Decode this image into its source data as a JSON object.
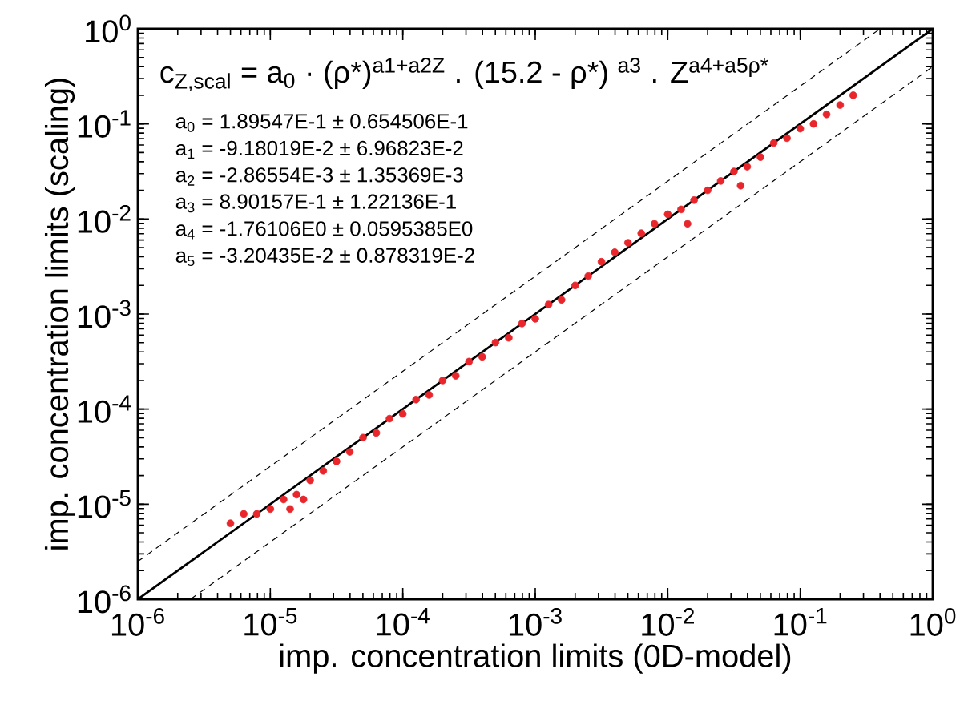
{
  "chart_data": {
    "type": "scatter",
    "xlabel": "imp. concentration limits (0D-model)",
    "ylabel": "imp. concentration limits (scaling)",
    "annotations": [
      "c$_{Z,scal}$ = a$_{0}$ · (ρ*)$^{a1+a2Z}$ . (15.2 - ρ*) $^{a3}$ . Z$^{a4+a5ρ*}$",
      "a$_{0}$ =  1.89547E-1 ± 0.654506E-1",
      "a$_{1}$ = -9.18019E-2 ± 6.96823E-2",
      "a$_{2}$ = -2.86554E-3 ± 1.35369E-3",
      "a$_{3}$ = 8.90157E-1 ± 1.22136E-1",
      "a$_{4}$ = -1.76106E0 ± 0.0595385E0",
      "a$_{5}$ = -3.20435E-2 ± 0.878319E-2"
    ],
    "log": "xy",
    "grid": false,
    "xlim": [
      1e-06,
      1
    ],
    "ylim": [
      1e-06,
      1
    ],
    "xticks": [
      {
        "value": 1e-06,
        "label": "10$^{-6}$"
      },
      {
        "value": 1e-05,
        "label": "10$^{-5}$"
      },
      {
        "value": 0.0001,
        "label": "10$^{-4}$"
      },
      {
        "value": 0.001,
        "label": "10$^{-3}$"
      },
      {
        "value": 0.01,
        "label": "10$^{-2}$"
      },
      {
        "value": 0.1,
        "label": "10$^{-1}$"
      },
      {
        "value": 1,
        "label": "10$^{0}$"
      }
    ],
    "yticks": [
      {
        "value": 1e-06,
        "label": "10$^{-6}$"
      },
      {
        "value": 1e-05,
        "label": "10$^{-5}$"
      },
      {
        "value": 0.0001,
        "label": "10$^{-4}$"
      },
      {
        "value": 0.001,
        "label": "10$^{-3}$"
      },
      {
        "value": 0.01,
        "label": "10$^{-2}$"
      },
      {
        "value": 0.1,
        "label": "10$^{-1}$"
      },
      {
        "value": 1,
        "label": "10$^{0}$"
      }
    ],
    "series": [
      {
        "color": "#e8262b",
        "marker": "circle",
        "x": [
          5e-06,
          6.3e-06,
          7.9e-06,
          1e-05,
          1.26e-05,
          1.41e-05,
          1.58e-05,
          1.78e-05,
          2e-05,
          2.51e-05,
          3.16e-05,
          3.98e-05,
          5.01e-05,
          6.31e-05,
          7.94e-05,
          0.0001,
          0.000126,
          0.000158,
          0.0002,
          0.000251,
          0.000316,
          0.000398,
          0.000501,
          0.000631,
          0.000794,
          0.001,
          0.00126,
          0.00158,
          0.002,
          0.00251,
          0.00316,
          0.00398,
          0.00501,
          0.00631,
          0.00794,
          0.01,
          0.0126,
          0.0141,
          0.0158,
          0.02,
          0.0251,
          0.0316,
          0.0355,
          0.0398,
          0.0501,
          0.0631,
          0.0794,
          0.1,
          0.126,
          0.158,
          0.2,
          0.251
        ],
        "values": [
          6.3e-06,
          7.9e-06,
          7.9e-06,
          8.9e-06,
          1.12e-05,
          8.9e-06,
          1.26e-05,
          1.12e-05,
          1.78e-05,
          2.24e-05,
          2.82e-05,
          3.55e-05,
          5.01e-05,
          5.62e-05,
          7.94e-05,
          8.91e-05,
          0.000126,
          0.000141,
          0.0002,
          0.000224,
          0.000316,
          0.000355,
          0.000501,
          0.000562,
          0.000794,
          0.000891,
          0.00126,
          0.00141,
          0.002,
          0.00251,
          0.00355,
          0.00447,
          0.00562,
          0.00708,
          0.00891,
          0.0112,
          0.0126,
          0.00891,
          0.0158,
          0.02,
          0.0251,
          0.0316,
          0.0224,
          0.0355,
          0.0447,
          0.0631,
          0.0708,
          0.0891,
          0.1,
          0.126,
          0.158,
          0.2
        ]
      },
      {
        "type": "line",
        "color": "#000000",
        "line_style": "solid",
        "x": [
          1e-06,
          1
        ],
        "values": [
          1e-06,
          1
        ]
      },
      {
        "type": "line",
        "color": "#000000",
        "line_style": "dashed",
        "x": [
          1e-06,
          0.4
        ],
        "values": [
          2.5e-06,
          1
        ]
      },
      {
        "type": "line",
        "color": "#000000",
        "line_style": "dashed",
        "x": [
          2.5e-06,
          1
        ],
        "values": [
          1e-06,
          0.4
        ]
      }
    ]
  }
}
